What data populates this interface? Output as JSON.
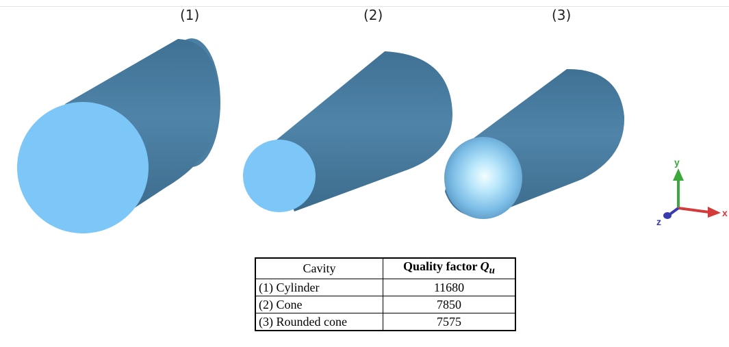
{
  "figure": {
    "cavity_labels": [
      "(1)",
      "(2)",
      "(3)"
    ],
    "axes": {
      "y": "y",
      "x": "x",
      "z": "z"
    },
    "colors": {
      "body": "#4b7fa3",
      "body_dark": "#2f5a78",
      "face": "#7cc6f8",
      "face_glow": "#e8fbff",
      "axis_y": "#3aa83a",
      "axis_x": "#d33a3a",
      "axis_z": "#3b3bb0"
    }
  },
  "table": {
    "header": {
      "cavity": "Cavity",
      "quality": "Quality factor ",
      "quality_symbol": "Q",
      "quality_sub": "u"
    },
    "rows": [
      {
        "cavity": "(1) Cylinder",
        "value": "11680"
      },
      {
        "cavity": "(2) Cone",
        "value": "7850"
      },
      {
        "cavity": "(3) Rounded cone",
        "value": "7575"
      }
    ]
  }
}
